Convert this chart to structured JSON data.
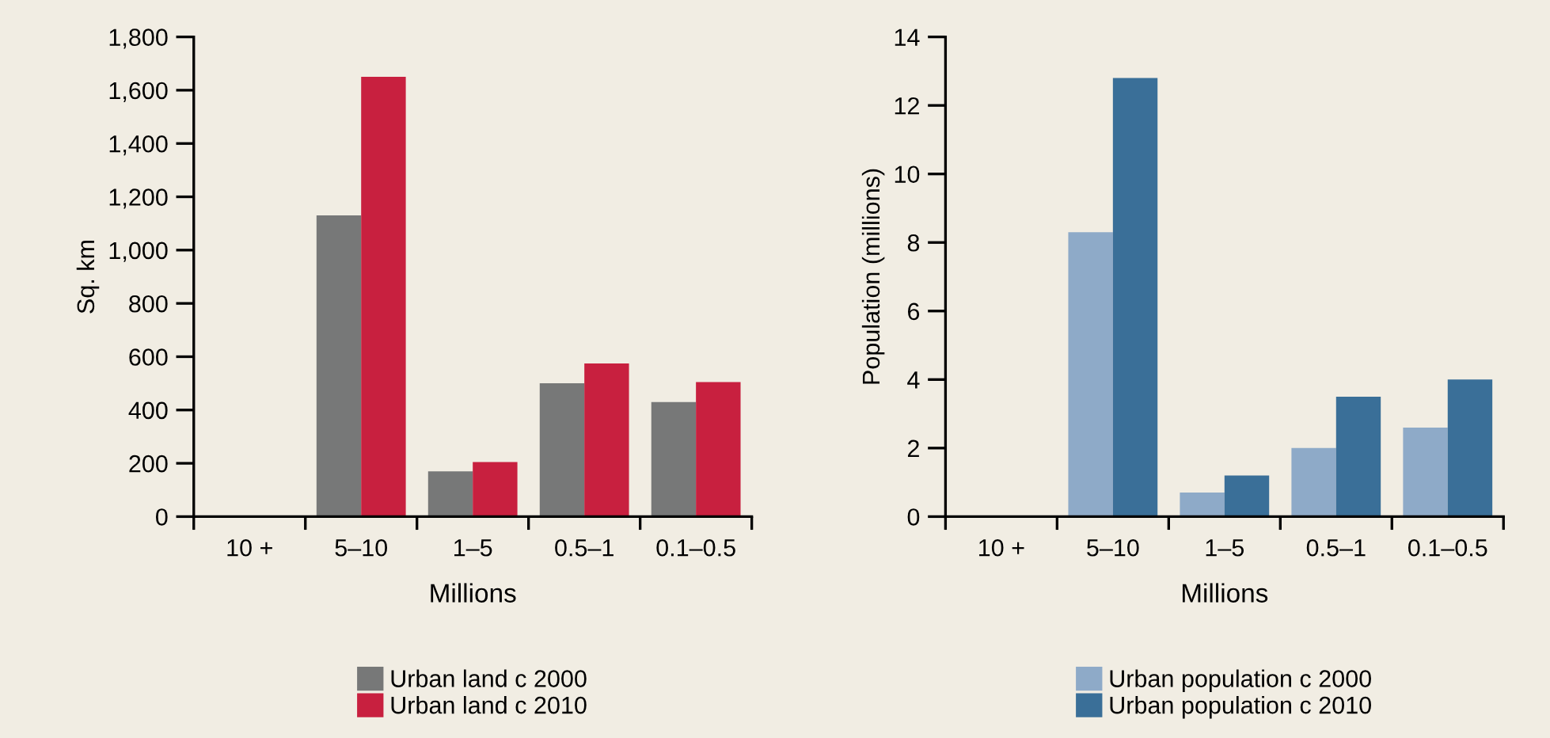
{
  "chart_data": [
    {
      "type": "bar",
      "xlabel": "Millions",
      "ylabel": "Sq. km",
      "categories": [
        "10 +",
        "5–10",
        "1–5",
        "0.5–1",
        "0.1–0.5"
      ],
      "series": [
        {
          "name": "Urban land c 2000",
          "color": "#777878",
          "values": [
            null,
            1130,
            170,
            500,
            430
          ]
        },
        {
          "name": "Urban land c 2010",
          "color": "#c8203f",
          "values": [
            null,
            1650,
            205,
            575,
            505
          ]
        }
      ],
      "ylim": [
        0,
        1800
      ],
      "yticks": [
        {
          "value": 0,
          "label": "0"
        },
        {
          "value": 200,
          "label": "200"
        },
        {
          "value": 400,
          "label": "400"
        },
        {
          "value": 600,
          "label": "600"
        },
        {
          "value": 800,
          "label": "800"
        },
        {
          "value": 1000,
          "label": "1,000"
        },
        {
          "value": 1200,
          "label": "1,200"
        },
        {
          "value": 1400,
          "label": "1,400"
        },
        {
          "value": 1600,
          "label": "1,600"
        },
        {
          "value": 1800,
          "label": "1,800"
        }
      ],
      "grid": false,
      "legend": "bottom"
    },
    {
      "type": "bar",
      "xlabel": "Millions",
      "ylabel": "Population (millions)",
      "categories": [
        "10 +",
        "5–10",
        "1–5",
        "0.5–1",
        "0.1–0.5"
      ],
      "series": [
        {
          "name": "Urban population c 2000",
          "color": "#8eaac8",
          "values": [
            null,
            8.3,
            0.7,
            2.0,
            2.6
          ]
        },
        {
          "name": "Urban population c 2010",
          "color": "#3a6f98",
          "values": [
            null,
            12.8,
            1.2,
            3.5,
            4.0
          ]
        }
      ],
      "ylim": [
        0,
        14
      ],
      "yticks": [
        0,
        2,
        4,
        6,
        8,
        10,
        12,
        14
      ],
      "grid": false,
      "legend": "bottom"
    }
  ]
}
